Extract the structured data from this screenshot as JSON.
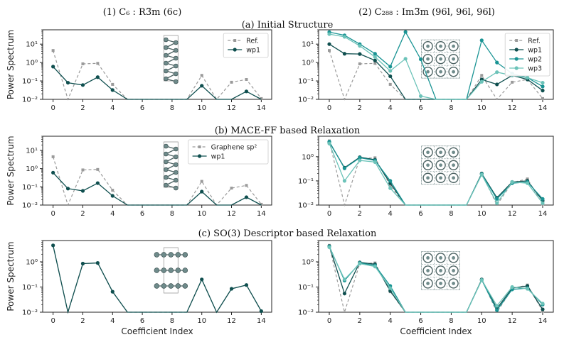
{
  "column_titles": {
    "left": "(1) C₆ : R3̅m (6c)",
    "right": "(2)  C₂₈₈ : Im3̅m (96l, 96l, 96l)"
  },
  "row_titles": [
    "(a) Initial Structure",
    "(b)  MACE-FF based Relaxation",
    "(c)  SO(3) Descriptor based Relaxation"
  ],
  "colors": {
    "ref": "#9a9a9a",
    "wp1": "#0f4f4f",
    "wp2": "#1a9494",
    "wp3": "#6cc3b9",
    "axis": "#222222"
  },
  "chart_data": [
    {
      "id": "a1",
      "type": "line",
      "yscale": "log",
      "ylim": [
        0.01,
        60
      ],
      "xlim": [
        -0.7,
        14.7
      ],
      "xticks": [
        "0",
        "2",
        "4",
        "6",
        "8",
        "10",
        "12",
        "14"
      ],
      "yticks": [
        "10⁻²",
        "10⁻¹",
        "10⁰",
        "10¹"
      ],
      "ylabel": "Power Spectrum",
      "xlabel": "",
      "legend_position": "top-right",
      "inset": "c6-ribbon",
      "x": [
        0,
        1,
        2,
        3,
        4,
        5,
        6,
        7,
        8,
        9,
        10,
        11,
        12,
        13,
        14
      ],
      "series": [
        {
          "name": "Ref.",
          "style": "ref",
          "values": [
            4.5,
            0.01,
            0.85,
            0.9,
            0.065,
            0.01,
            0.01,
            0.01,
            0.01,
            0.01,
            0.2,
            0.01,
            0.085,
            0.12,
            0.011
          ]
        },
        {
          "name": "wp1",
          "style": "wp1",
          "values": [
            0.6,
            0.08,
            0.06,
            0.16,
            0.032,
            0.01,
            0.01,
            0.01,
            0.01,
            0.01,
            0.055,
            0.01,
            0.01,
            0.027,
            0.01
          ]
        }
      ]
    },
    {
      "id": "a2",
      "type": "line",
      "yscale": "log",
      "ylim": [
        0.01,
        60
      ],
      "xlim": [
        -0.7,
        14.7
      ],
      "xticks": [
        "0",
        "2",
        "4",
        "6",
        "8",
        "10",
        "12",
        "14"
      ],
      "yticks": [
        "10⁻²",
        "10⁻¹",
        "10⁰",
        "10¹"
      ],
      "ylabel": "",
      "xlabel": "",
      "legend_position": "top-right",
      "inset": "c288-framework",
      "x": [
        0,
        1,
        2,
        3,
        4,
        5,
        6,
        7,
        8,
        9,
        10,
        11,
        12,
        13,
        14
      ],
      "series": [
        {
          "name": "Ref.",
          "style": "ref",
          "values": [
            4.5,
            0.01,
            0.85,
            0.9,
            0.065,
            0.01,
            0.01,
            0.01,
            0.01,
            0.01,
            0.2,
            0.01,
            0.085,
            0.12,
            0.011
          ]
        },
        {
          "name": "wp1",
          "style": "wp1",
          "values": [
            10,
            3,
            2.9,
            1.3,
            0.18,
            0.01,
            0.01,
            0.01,
            0.01,
            0.01,
            0.12,
            0.065,
            0.2,
            0.12,
            0.03
          ]
        },
        {
          "name": "wp2",
          "style": "wp2",
          "values": [
            45,
            30,
            10,
            3,
            0.6,
            46,
            1.5,
            0.01,
            0.01,
            0.01,
            16,
            1.0,
            0.25,
            0.15,
            0.05
          ]
        },
        {
          "name": "wp3",
          "style": "wp3",
          "values": [
            35,
            25,
            8,
            2,
            0.35,
            1.6,
            0.015,
            0.01,
            0.01,
            0.01,
            0.09,
            0.3,
            0.2,
            0.15,
            0.08
          ]
        }
      ]
    },
    {
      "id": "b1",
      "type": "line",
      "yscale": "log",
      "ylim": [
        0.01,
        60
      ],
      "xlim": [
        -0.7,
        14.7
      ],
      "xticks": [
        "0",
        "2",
        "4",
        "6",
        "8",
        "10",
        "12",
        "14"
      ],
      "yticks": [
        "10⁻²",
        "10⁻¹",
        "10⁰",
        "10¹"
      ],
      "ylabel": "Power Spectrum",
      "xlabel": "",
      "legend_position": "top-right",
      "inset": "c6-ribbon",
      "x": [
        0,
        1,
        2,
        3,
        4,
        5,
        6,
        7,
        8,
        9,
        10,
        11,
        12,
        13,
        14
      ],
      "series": [
        {
          "name": "Graphene sp²",
          "style": "ref",
          "values": [
            4.5,
            0.01,
            0.85,
            0.9,
            0.065,
            0.01,
            0.01,
            0.01,
            0.01,
            0.01,
            0.2,
            0.01,
            0.085,
            0.12,
            0.011
          ]
        },
        {
          "name": "wp1",
          "style": "wp1",
          "values": [
            0.6,
            0.08,
            0.06,
            0.16,
            0.032,
            0.01,
            0.01,
            0.01,
            0.01,
            0.01,
            0.055,
            0.01,
            0.01,
            0.027,
            0.01
          ]
        }
      ]
    },
    {
      "id": "b2",
      "type": "line",
      "yscale": "log",
      "ylim": [
        0.01,
        7
      ],
      "xlim": [
        -0.7,
        14.7
      ],
      "xticks": [
        "0",
        "2",
        "4",
        "6",
        "8",
        "10",
        "12",
        "14"
      ],
      "yticks": [
        "10⁻²",
        "10⁻¹",
        "10⁰"
      ],
      "ylabel": "",
      "xlabel": "",
      "legend_position": "none",
      "inset": "c288-framework",
      "x": [
        0,
        1,
        2,
        3,
        4,
        5,
        6,
        7,
        8,
        9,
        10,
        11,
        12,
        13,
        14
      ],
      "series": [
        {
          "name": "Ref.",
          "style": "ref",
          "values": [
            4.5,
            0.01,
            0.85,
            0.9,
            0.065,
            0.01,
            0.01,
            0.01,
            0.01,
            0.01,
            0.2,
            0.01,
            0.085,
            0.12,
            0.011
          ]
        },
        {
          "name": "wp1",
          "style": "wp1",
          "values": [
            4,
            0.35,
            0.95,
            0.75,
            0.08,
            0.01,
            0.01,
            0.01,
            0.01,
            0.01,
            0.2,
            0.02,
            0.09,
            0.1,
            0.015
          ]
        },
        {
          "name": "wp2",
          "style": "wp2",
          "values": [
            4.2,
            0.33,
            0.9,
            0.7,
            0.1,
            0.01,
            0.01,
            0.01,
            0.01,
            0.01,
            0.19,
            0.018,
            0.08,
            0.09,
            0.018
          ]
        },
        {
          "name": "wp3",
          "style": "wp3",
          "values": [
            3.5,
            0.1,
            0.7,
            0.6,
            0.05,
            0.01,
            0.01,
            0.01,
            0.01,
            0.01,
            0.18,
            0.012,
            0.09,
            0.08,
            0.012
          ]
        }
      ]
    },
    {
      "id": "c1",
      "type": "line",
      "yscale": "log",
      "ylim": [
        0.01,
        7
      ],
      "xlim": [
        -0.7,
        14.7
      ],
      "xticks": [
        "0",
        "2",
        "4",
        "6",
        "8",
        "10",
        "12",
        "14"
      ],
      "yticks": [
        "10⁻²",
        "10⁻¹",
        "10⁰"
      ],
      "ylabel": "Power Spectrum",
      "xlabel": "Coefficient Index",
      "legend_position": "none",
      "inset": "c6-layers",
      "x": [
        0,
        1,
        2,
        3,
        4,
        5,
        6,
        7,
        8,
        9,
        10,
        11,
        12,
        13,
        14
      ],
      "series": [
        {
          "name": "Ref.",
          "style": "ref",
          "values": [
            4.5,
            0.01,
            0.85,
            0.9,
            0.065,
            0.01,
            0.01,
            0.01,
            0.01,
            0.01,
            0.2,
            0.01,
            0.085,
            0.12,
            0.011
          ]
        },
        {
          "name": "wp1",
          "style": "wp1",
          "values": [
            4.5,
            0.01,
            0.85,
            0.9,
            0.065,
            0.01,
            0.01,
            0.01,
            0.01,
            0.01,
            0.2,
            0.01,
            0.085,
            0.12,
            0.011
          ]
        }
      ]
    },
    {
      "id": "c2",
      "type": "line",
      "yscale": "log",
      "ylim": [
        0.01,
        7
      ],
      "xlim": [
        -0.7,
        14.7
      ],
      "xticks": [
        "0",
        "2",
        "4",
        "6",
        "8",
        "10",
        "12",
        "14"
      ],
      "yticks": [
        "10⁻²",
        "10⁻¹",
        "10⁰"
      ],
      "ylabel": "",
      "xlabel": "Coefficient Index",
      "legend_position": "none",
      "inset": "c288-framework",
      "x": [
        0,
        1,
        2,
        3,
        4,
        5,
        6,
        7,
        8,
        9,
        10,
        11,
        12,
        13,
        14
      ],
      "series": [
        {
          "name": "Ref.",
          "style": "ref",
          "values": [
            4.5,
            0.01,
            0.85,
            0.9,
            0.065,
            0.01,
            0.01,
            0.01,
            0.01,
            0.01,
            0.2,
            0.01,
            0.085,
            0.12,
            0.011
          ]
        },
        {
          "name": "wp1",
          "style": "wp1",
          "values": [
            4.2,
            0.055,
            0.95,
            0.8,
            0.07,
            0.01,
            0.01,
            0.01,
            0.01,
            0.01,
            0.2,
            0.014,
            0.09,
            0.11,
            0.013
          ]
        },
        {
          "name": "wp2",
          "style": "wp2",
          "values": [
            4.1,
            0.18,
            0.9,
            0.72,
            0.11,
            0.01,
            0.01,
            0.01,
            0.01,
            0.01,
            0.19,
            0.012,
            0.08,
            0.09,
            0.02
          ]
        },
        {
          "name": "wp3",
          "style": "wp3",
          "values": [
            3.8,
            0.2,
            0.85,
            0.65,
            0.09,
            0.01,
            0.01,
            0.01,
            0.01,
            0.01,
            0.19,
            0.018,
            0.1,
            0.085,
            0.022
          ]
        }
      ]
    }
  ]
}
